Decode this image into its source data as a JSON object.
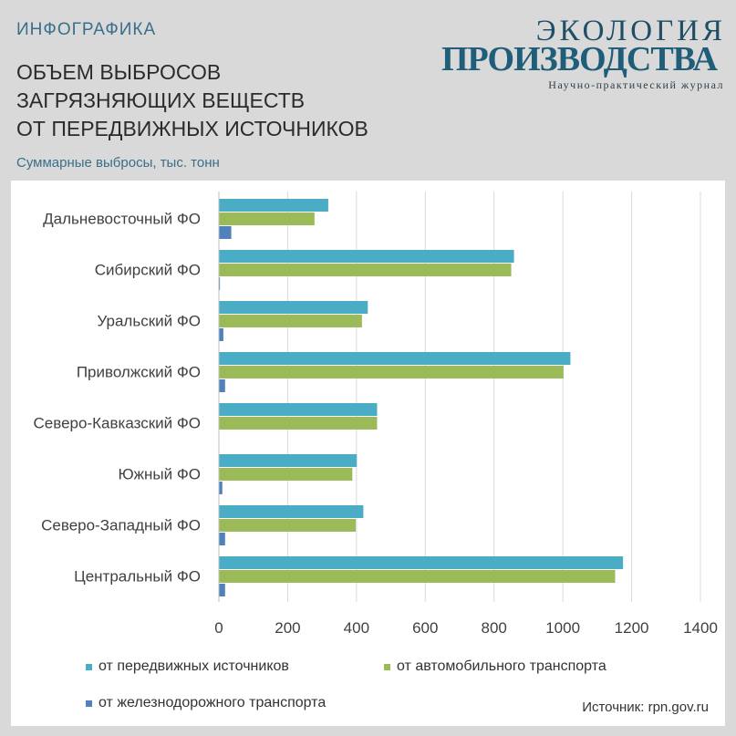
{
  "header": {
    "kicker": "ИНФОГРАФИКА",
    "title_lines": [
      "ОБЪЕМ ВЫБРОСОВ",
      "ЗАГРЯЗНЯЮЩИХ ВЕЩЕСТВ",
      "ОТ ПЕРЕДВИЖНЫХ ИСТОЧНИКОВ"
    ],
    "subtitle": "Суммарные выбросы, тыс. тонн"
  },
  "logo": {
    "top": "Экология",
    "main": "Производства",
    "sub": "Научно-практический журнал"
  },
  "source": "Источник: rpn.gov.ru",
  "colors": {
    "mobile": "#4bacc6",
    "auto": "#9bbb59",
    "rail": "#4f81bd",
    "grid": "#d9d9d9",
    "text": "#404040"
  },
  "chart_data": {
    "type": "bar",
    "orientation": "horizontal",
    "categories": [
      "Дальневосточный ФО",
      "Сибирский ФО",
      "Уральский ФО",
      "Приволжский ФО",
      "Северо-Кавказский ФО",
      "Южный ФО",
      "Северо-Западный ФО",
      "Центральный ФО"
    ],
    "series": [
      {
        "name": "от передвижных источников",
        "values": [
          318,
          858,
          433,
          1022,
          460,
          401,
          420,
          1175
        ]
      },
      {
        "name": "от автомобильного транспорта",
        "values": [
          278,
          850,
          416,
          1002,
          460,
          388,
          398,
          1152
        ]
      },
      {
        "name": "от железнодорожного транспорта",
        "values": [
          36,
          3,
          13,
          18,
          0,
          10,
          18,
          18
        ]
      }
    ],
    "x_ticks": [
      "0",
      "200",
      "400",
      "600",
      "800",
      "1000",
      "1200",
      "1400"
    ],
    "xlim": [
      0,
      1400
    ],
    "grid": "vertical",
    "legend_position": "bottom"
  }
}
